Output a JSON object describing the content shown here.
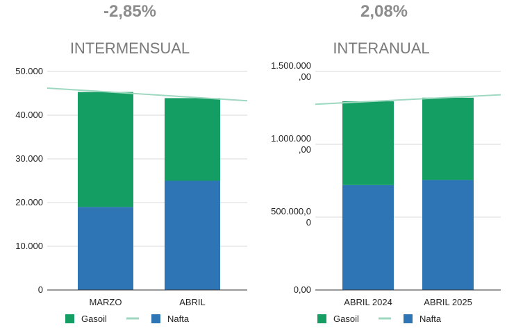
{
  "chart_data": [
    {
      "type": "bar",
      "stacked": true,
      "headline": "-2,85%",
      "title": "INTERMENSUAL",
      "categories": [
        "MARZO",
        "ABRIL"
      ],
      "series": [
        {
          "name": "Nafta",
          "color": "#2E75B6",
          "values": [
            19000,
            25000
          ]
        },
        {
          "name": "Gasoil",
          "color": "#159E63",
          "values": [
            26300,
            18900
          ]
        }
      ],
      "trendline": {
        "name": "",
        "color": "#9FD8C0",
        "start": 46200,
        "end": 43300
      },
      "ylim": [
        0,
        50000
      ],
      "y_ticks": [
        0,
        10000,
        20000,
        30000,
        40000,
        50000
      ],
      "y_tick_labels": [
        [
          "0"
        ],
        [
          "10.000"
        ],
        [
          "20.000"
        ],
        [
          "30.000"
        ],
        [
          "40.000"
        ],
        [
          "50.000"
        ]
      ],
      "legend": [
        "Gasoil",
        "",
        "Nafta"
      ],
      "grid": true
    },
    {
      "type": "bar",
      "stacked": true,
      "headline": "2,08%",
      "title": "INTERANUAL",
      "categories": [
        "ABRIL 2024",
        "ABRIL 2025"
      ],
      "series": [
        {
          "name": "Nafta",
          "color": "#2E75B6",
          "values": [
            720000,
            755000
          ]
        },
        {
          "name": "Gasoil",
          "color": "#159E63",
          "values": [
            575000,
            565000
          ]
        }
      ],
      "trendline": {
        "name": "",
        "color": "#9FD8C0",
        "start": 1275000,
        "end": 1340000
      },
      "ylim": [
        0,
        1500000
      ],
      "y_ticks": [
        0,
        500000,
        1000000,
        1500000
      ],
      "y_tick_labels": [
        [
          "0,00"
        ],
        [
          "500.000,0",
          "0"
        ],
        [
          "1.000.000",
          ",00"
        ],
        [
          "1.500.000",
          ",00"
        ]
      ],
      "legend": [
        "Gasoil",
        "",
        "Nafta"
      ],
      "grid": true
    }
  ]
}
